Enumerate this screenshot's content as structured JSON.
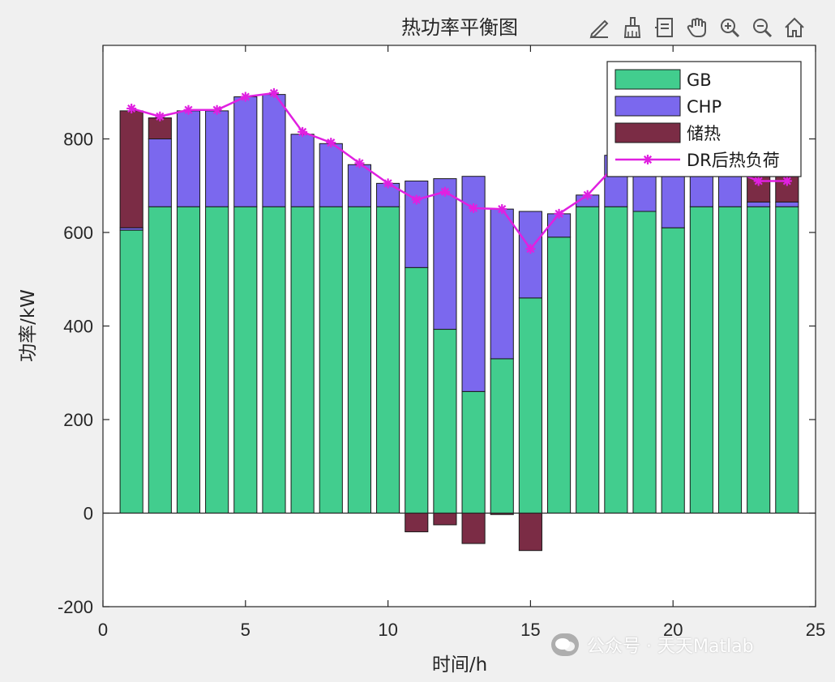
{
  "toolbar": {
    "icons": [
      "edit-axes-icon",
      "brush-icon",
      "data-tips-icon",
      "pan-hand-icon",
      "zoom-in-icon",
      "zoom-out-icon",
      "home-icon"
    ]
  },
  "watermark": {
    "text": "公众号 · 天天Matlab"
  },
  "colors": {
    "gb": "#42CD8E",
    "chp": "#7B68EE",
    "storage": "#7B2C45",
    "dr_line": "#E020E0",
    "background": "#f0f0f0",
    "axes_bg": "#ffffff"
  },
  "chart_data": {
    "type": "bar",
    "stacked": true,
    "title": "热功率平衡图",
    "xlabel": "时间/h",
    "ylabel": "功率/kW",
    "xlim": [
      0,
      25
    ],
    "ylim": [
      -200,
      1000
    ],
    "xticks": [
      0,
      5,
      10,
      15,
      20,
      25
    ],
    "yticks": [
      -200,
      0,
      200,
      400,
      600,
      800
    ],
    "x": [
      1,
      2,
      3,
      4,
      5,
      6,
      7,
      8,
      9,
      10,
      11,
      12,
      13,
      14,
      15,
      16,
      17,
      18,
      19,
      20,
      21,
      22,
      23,
      24
    ],
    "series": [
      {
        "name": "GB",
        "type": "bar",
        "values": [
          605,
          655,
          655,
          655,
          655,
          655,
          655,
          655,
          655,
          655,
          525,
          393,
          260,
          330,
          460,
          590,
          655,
          655,
          645,
          610,
          655,
          655,
          655,
          655
        ]
      },
      {
        "name": "CHP",
        "type": "bar",
        "values": [
          5,
          145,
          205,
          205,
          235,
          240,
          155,
          135,
          90,
          50,
          185,
          322,
          460,
          320,
          185,
          50,
          25,
          110,
          100,
          155,
          80,
          80,
          10,
          10
        ]
      },
      {
        "name": "储热",
        "type": "bar",
        "values": [
          250,
          45,
          0,
          0,
          0,
          0,
          0,
          0,
          0,
          0,
          -40,
          -25,
          -65,
          -3,
          -80,
          0,
          0,
          0,
          0,
          0,
          0,
          0,
          60,
          60
        ]
      },
      {
        "name": "DR后热负荷",
        "type": "line",
        "values": [
          865,
          848,
          862,
          862,
          890,
          898,
          815,
          792,
          748,
          705,
          670,
          687,
          652,
          650,
          565,
          640,
          680,
          745,
          745,
          765,
          735,
          735,
          710,
          710
        ]
      }
    ],
    "grid": false,
    "legend_position": "top-right"
  }
}
